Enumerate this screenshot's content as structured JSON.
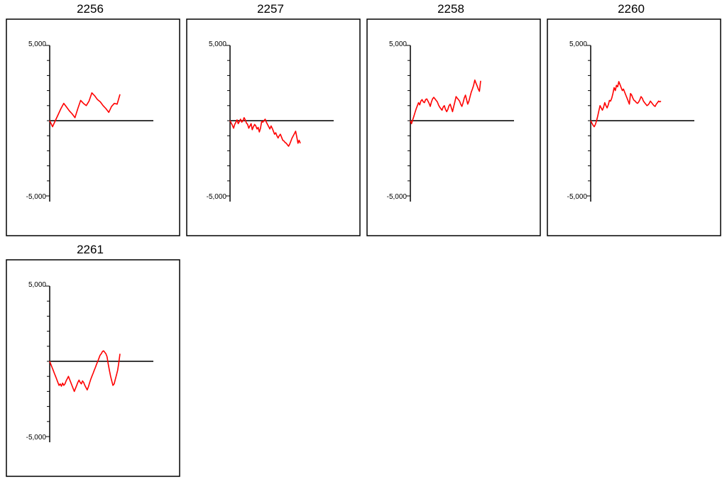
{
  "colors": {
    "series": "#ff0000",
    "axis": "#000000",
    "zero_line": "#3a3a3a",
    "frame": "#000000"
  },
  "chart_data": [
    {
      "type": "line",
      "title": "2256",
      "ylim": [
        -5000,
        5000
      ],
      "ytick_labels": [
        "5,000",
        "-5,000"
      ],
      "x": [
        0,
        1,
        2,
        3,
        4,
        5,
        6,
        7,
        8,
        9,
        10,
        11,
        12,
        13,
        14,
        15,
        16,
        17,
        18,
        19,
        20,
        21,
        22,
        23,
        24,
        25
      ],
      "series": [
        {
          "values": [
            0,
            -400,
            0,
            400,
            800,
            1150,
            900,
            650,
            450,
            200,
            800,
            1350,
            1150,
            1000,
            1300,
            1850,
            1650,
            1400,
            1250,
            1000,
            800,
            550,
            950,
            1150,
            1100,
            1750
          ]
        }
      ]
    },
    {
      "type": "line",
      "title": "2257",
      "ylim": [
        -5000,
        5000
      ],
      "ytick_labels": [
        "5,000",
        "-5,000"
      ],
      "x": [
        0,
        1,
        2,
        3,
        4,
        5,
        6,
        7,
        8,
        9,
        10,
        11,
        12,
        13,
        14,
        15,
        16,
        17,
        18,
        19,
        20,
        21,
        22,
        23,
        24,
        25,
        26,
        27,
        28,
        29,
        30,
        31,
        32,
        33,
        34,
        35,
        36,
        37,
        38,
        39,
        40,
        41,
        42,
        43,
        44,
        45,
        46,
        47,
        48,
        49,
        50,
        51,
        52,
        53,
        54,
        55,
        56,
        57,
        58,
        59,
        60
      ],
      "series": [
        {
          "values": [
            0,
            -150,
            -300,
            -500,
            -250,
            -100,
            50,
            -200,
            -50,
            100,
            -100,
            0,
            200,
            50,
            -150,
            -250,
            -500,
            -350,
            -200,
            -600,
            -400,
            -250,
            -350,
            -550,
            -450,
            -750,
            -500,
            -50,
            -100,
            0,
            100,
            -100,
            -250,
            -400,
            -550,
            -350,
            -500,
            -700,
            -900,
            -800,
            -1000,
            -1150,
            -1000,
            -900,
            -1100,
            -1300,
            -1350,
            -1450,
            -1500,
            -1600,
            -1700,
            -1550,
            -1350,
            -1150,
            -1000,
            -850,
            -700,
            -1100,
            -1500,
            -1300,
            -1500
          ]
        }
      ]
    },
    {
      "type": "line",
      "title": "2258",
      "ylim": [
        -5000,
        5000
      ],
      "ytick_labels": [
        "5,000",
        "-5,000"
      ],
      "x": [
        0,
        1,
        2,
        3,
        4,
        5,
        6,
        7,
        8,
        9,
        10,
        11,
        12,
        13,
        14,
        15,
        16,
        17,
        18,
        19,
        20,
        21,
        22,
        23,
        24,
        25,
        26,
        27,
        28,
        29,
        30,
        31,
        32,
        33,
        34,
        35,
        36,
        37,
        38,
        39,
        40,
        41,
        42,
        43,
        44,
        45,
        46,
        47,
        48,
        49,
        50,
        51,
        52,
        53,
        54,
        55,
        56,
        57,
        58,
        59,
        60
      ],
      "series": [
        {
          "values": [
            0,
            -200,
            50,
            300,
            550,
            800,
            1000,
            1200,
            1050,
            1300,
            1400,
            1250,
            1200,
            1400,
            1450,
            1300,
            1150,
            950,
            1250,
            1450,
            1550,
            1450,
            1350,
            1250,
            1050,
            900,
            800,
            700,
            900,
            1000,
            750,
            600,
            750,
            1000,
            1100,
            850,
            600,
            950,
            1250,
            1600,
            1500,
            1400,
            1300,
            1100,
            950,
            1200,
            1500,
            1700,
            1400,
            1100,
            1300,
            1600,
            1900,
            2100,
            2350,
            2700,
            2500,
            2300,
            2100,
            1950,
            2650
          ]
        }
      ]
    },
    {
      "type": "line",
      "title": "2260",
      "ylim": [
        -5000,
        5000
      ],
      "ytick_labels": [
        "5,000",
        "-5,000"
      ],
      "x": [
        0,
        1,
        2,
        3,
        4,
        5,
        6,
        7,
        8,
        9,
        10,
        11,
        12,
        13,
        14,
        15,
        16,
        17,
        18,
        19,
        20,
        21,
        22,
        23,
        24,
        25,
        26,
        27,
        28,
        29,
        30,
        31,
        32,
        33,
        34,
        35,
        36,
        37,
        38,
        39,
        40,
        41,
        42,
        43,
        44,
        45,
        46,
        47,
        48,
        49,
        50,
        51,
        52,
        53,
        54,
        55,
        56,
        57,
        58,
        59,
        60
      ],
      "series": [
        {
          "values": [
            0,
            -150,
            -300,
            -400,
            -250,
            0,
            300,
            650,
            1000,
            850,
            700,
            900,
            1200,
            1000,
            850,
            1050,
            1350,
            1300,
            1500,
            1800,
            2200,
            2000,
            2350,
            2250,
            2600,
            2400,
            2200,
            2000,
            2100,
            1900,
            1700,
            1500,
            1300,
            1100,
            1800,
            1700,
            1500,
            1350,
            1300,
            1200,
            1150,
            1250,
            1400,
            1600,
            1500,
            1300,
            1200,
            1100,
            1000,
            1050,
            1150,
            1300,
            1200,
            1100,
            1000,
            950,
            1100,
            1200,
            1300,
            1250,
            1300
          ]
        }
      ]
    },
    {
      "type": "line",
      "title": "2261",
      "ylim": [
        -5000,
        5000
      ],
      "ytick_labels": [
        "5,000",
        "-5,000"
      ],
      "x": [
        0,
        1,
        2,
        3,
        4,
        5,
        6,
        7,
        8,
        9,
        10,
        11,
        12,
        13,
        14,
        15,
        16,
        17,
        18,
        19,
        20,
        21,
        22,
        23,
        24,
        25,
        26,
        27,
        28,
        29,
        30,
        31,
        32,
        33,
        34,
        35,
        36,
        37,
        38,
        39,
        40,
        41,
        42,
        43,
        44,
        45,
        46,
        47,
        48,
        49,
        50,
        51,
        52,
        53,
        54,
        55,
        56,
        57,
        58,
        59,
        60
      ],
      "series": [
        {
          "values": [
            0,
            -200,
            -400,
            -600,
            -800,
            -1000,
            -1200,
            -1400,
            -1600,
            -1500,
            -1650,
            -1450,
            -1600,
            -1500,
            -1300,
            -1150,
            -1000,
            -1200,
            -1400,
            -1600,
            -1800,
            -2000,
            -1800,
            -1600,
            -1400,
            -1250,
            -1400,
            -1500,
            -1300,
            -1400,
            -1600,
            -1750,
            -1900,
            -1700,
            -1450,
            -1200,
            -1000,
            -800,
            -600,
            -400,
            -200,
            0,
            200,
            400,
            500,
            650,
            700,
            600,
            500,
            300,
            -200,
            -600,
            -1000,
            -1300,
            -1600,
            -1500,
            -1200,
            -900,
            -600,
            -100,
            500
          ]
        }
      ]
    }
  ]
}
